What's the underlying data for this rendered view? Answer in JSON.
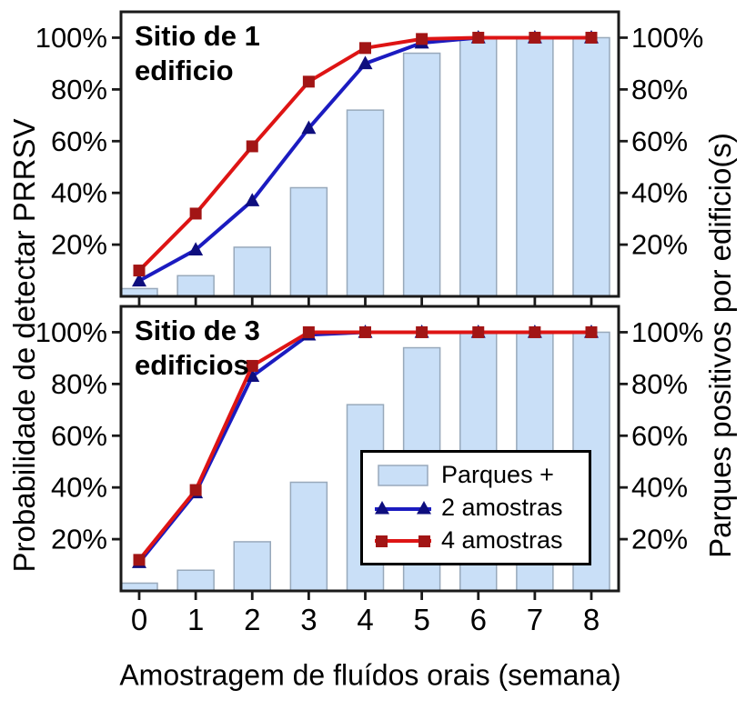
{
  "figure": {
    "x_axis_label": "Amostragem de fluídos orais (semana)",
    "left_axis_label": "Probabilidade de detectar PRRSV",
    "right_axis_label": "Parques positivos por edificio(s)",
    "x_tick_labels": [
      "0",
      "1",
      "2",
      "3",
      "4",
      "5",
      "6",
      "7",
      "8"
    ],
    "y_tick_labels": [
      "20%",
      "40%",
      "60%",
      "80%",
      "100%"
    ],
    "y_tick_values": [
      20,
      40,
      60,
      80,
      100
    ]
  },
  "legend": {
    "items": [
      {
        "label": "Parques +",
        "swatch": "bar"
      },
      {
        "label": "2 amostras",
        "swatch": "line-triangle"
      },
      {
        "label": "4 amostras",
        "swatch": "line-square"
      }
    ]
  },
  "colors": {
    "bar_fill": "#C9DFF7",
    "bar_stroke": "#98A9BB",
    "line_2_amostras": "#1B1BC0",
    "marker_2_amostras": "#0E0E7E",
    "line_4_amostras": "#DE1414",
    "marker_4_amostras": "#A21515",
    "axis": "#1A1A1A",
    "text": "#000000"
  },
  "chart_data": [
    {
      "type": "bar+line",
      "panel": "Sitio de 1 edificio",
      "title_lines": [
        "Sitio de 1",
        "edificio"
      ],
      "x": [
        0,
        1,
        2,
        3,
        4,
        5,
        6,
        7,
        8
      ],
      "xlabel": "Amostragem de fluídos orais (semana)",
      "ylabel_left": "Probabilidade de detectar PRRSV",
      "ylabel_right": "Parques positivos por edificio(s)",
      "ylim": [
        0,
        110
      ],
      "yticks_percent": [
        20,
        40,
        60,
        80,
        100
      ],
      "grid": false,
      "bars": {
        "name": "Parques +",
        "values": [
          3,
          8,
          19,
          42,
          72,
          94,
          100,
          100,
          100
        ]
      },
      "series": [
        {
          "name": "2 amostras",
          "marker": "triangle",
          "values": [
            6,
            18,
            37,
            65,
            90,
            98,
            100,
            100,
            100
          ]
        },
        {
          "name": "4 amostras",
          "marker": "square",
          "values": [
            10,
            32,
            58,
            83,
            96,
            99.5,
            100,
            100,
            100
          ]
        }
      ]
    },
    {
      "type": "bar+line",
      "panel": "Sitio de 3 edificios",
      "title_lines": [
        "Sitio de 3",
        "edificios"
      ],
      "x": [
        0,
        1,
        2,
        3,
        4,
        5,
        6,
        7,
        8
      ],
      "xlabel": "Amostragem de fluídos orais (semana)",
      "ylabel_left": "Probabilidade de detectar PRRSV",
      "ylabel_right": "Parques positivos por edificio(s)",
      "ylim": [
        0,
        110
      ],
      "yticks_percent": [
        20,
        40,
        60,
        80,
        100
      ],
      "grid": false,
      "bars": {
        "name": "Parques +",
        "values": [
          3,
          8,
          19,
          42,
          72,
          94,
          100,
          100,
          100
        ]
      },
      "series": [
        {
          "name": "2 amostras",
          "marker": "triangle",
          "values": [
            11,
            38,
            83,
            99,
            100,
            100,
            100,
            100,
            100
          ]
        },
        {
          "name": "4 amostras",
          "marker": "square",
          "values": [
            12,
            39,
            87,
            100,
            100,
            100,
            100,
            100,
            100
          ]
        }
      ]
    }
  ]
}
